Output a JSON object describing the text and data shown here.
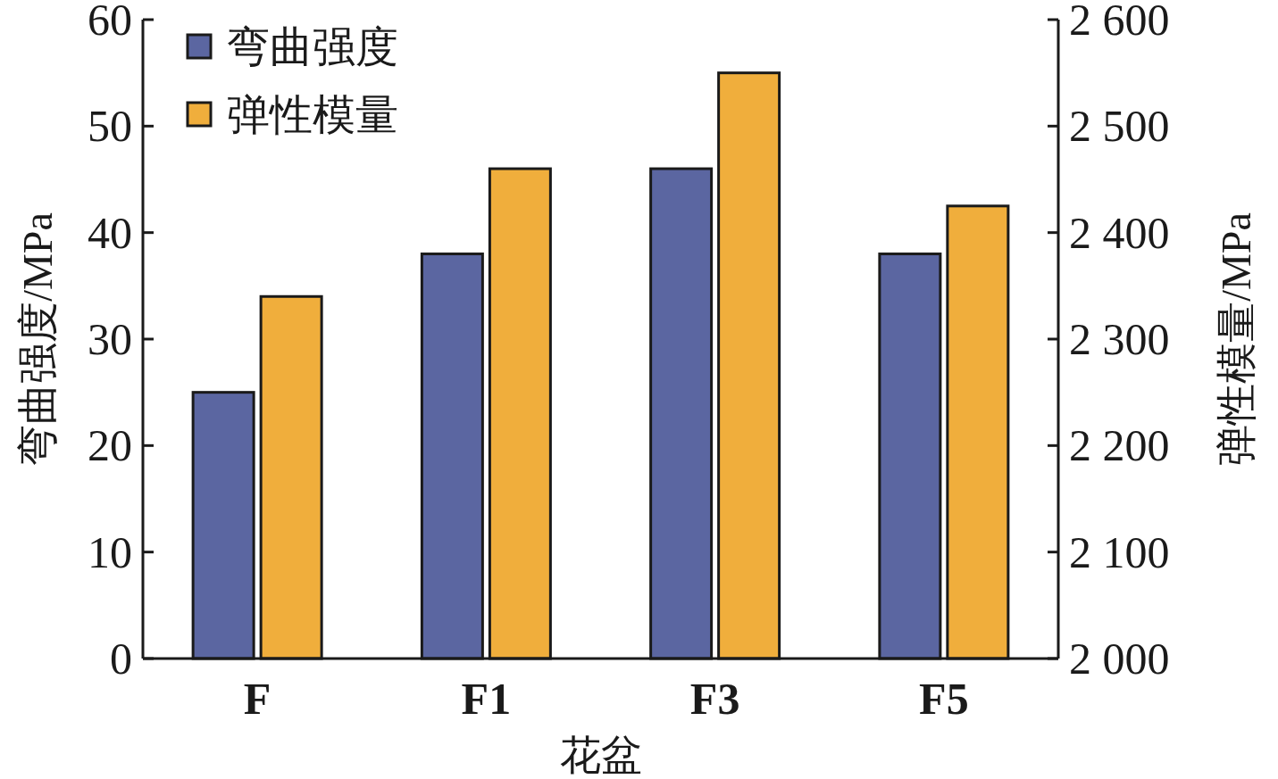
{
  "chart_data": {
    "type": "bar",
    "xlabel": "花盆",
    "ylabel": "弯曲强度/MPa",
    "y2label": "弹性模量/MPa",
    "categories": [
      "F",
      "F1",
      "F3",
      "F5"
    ],
    "series": [
      {
        "name": "弯曲强度",
        "color": "#5b66a1",
        "values": [
          25,
          38,
          46,
          38
        ]
      },
      {
        "name": "弹性模量",
        "color": "#f0ae3c",
        "values": [
          2340,
          2460,
          2550,
          2425
        ],
        "axis": "y2"
      }
    ],
    "ylim": [
      0,
      60
    ],
    "yticks": [
      0,
      10,
      20,
      30,
      40,
      50,
      60
    ],
    "y2lim": [
      2000,
      2600
    ],
    "y2ticks": [
      {
        "value": 2000,
        "label": "2 000"
      },
      {
        "value": 2100,
        "label": "2 100"
      },
      {
        "value": 2200,
        "label": "2 200"
      },
      {
        "value": 2300,
        "label": "2 300"
      },
      {
        "value": 2400,
        "label": "2 400"
      },
      {
        "value": 2500,
        "label": "2 500"
      },
      {
        "value": 2600,
        "label": "2 600"
      }
    ],
    "legend": "top left"
  }
}
